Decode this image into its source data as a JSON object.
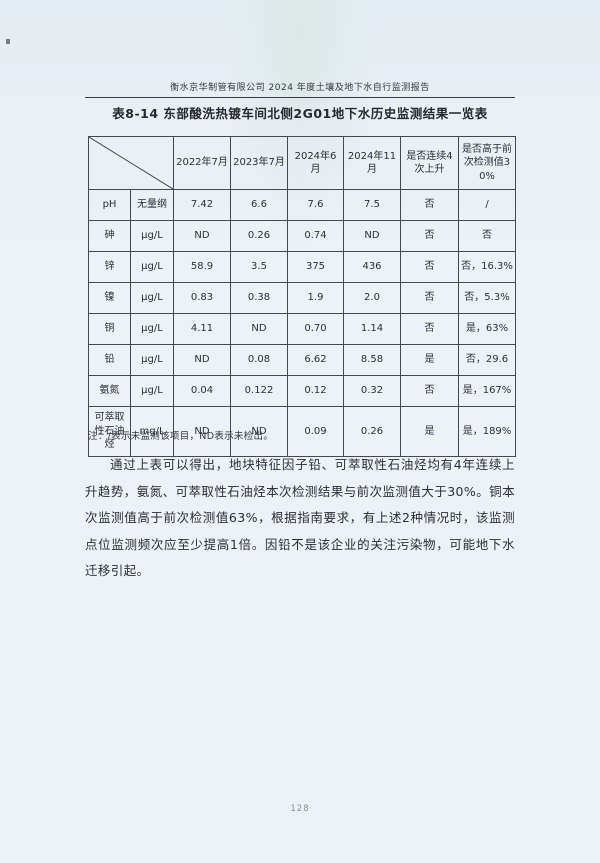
{
  "page": {
    "header_title": "衡水京华制管有限公司 2024 年度土壤及地下水自行监测报告",
    "table_title": "表8-14  东部酸洗热镀车间北侧2G01地下水历史监测结果一览表",
    "note": "注：/表示未监测该项目，ND表示未检出。",
    "paragraph": "通过上表可以得出，地块特征因子铅、可萃取性石油烃均有4年连续上升趋势，氨氮、可萃取性石油烃本次检测结果与前次监测值大于30%。铜本次监测值高于前次检测值63%，根据指南要求，有上述2种情况时，该监测点位监测频次应至少提高1倍。因铅不是该企业的关注污染物，可能地下水迁移引起。",
    "page_number": "128"
  },
  "table": {
    "columns": [
      "2022年7月",
      "2023年7月",
      "2024年6月",
      "2024年11月",
      "是否连续4次上升",
      "是否高于前次检测值30%"
    ],
    "rows": [
      {
        "name": "pH",
        "unit": "无量纲",
        "values": [
          "7.42",
          "6.6",
          "7.6",
          "7.5"
        ],
        "rising": "否",
        "rising_bold": false,
        "exceed": "/",
        "exceed_bold": false
      },
      {
        "name": "砷",
        "unit": "μg/L",
        "values": [
          "ND",
          "0.26",
          "0.74",
          "ND"
        ],
        "rising": "否",
        "rising_bold": false,
        "exceed": "否",
        "exceed_bold": false
      },
      {
        "name": "锌",
        "unit": "μg/L",
        "values": [
          "58.9",
          "3.5",
          "375",
          "436"
        ],
        "rising": "否",
        "rising_bold": false,
        "exceed": "否，16.3%",
        "exceed_bold": false
      },
      {
        "name": "镍",
        "unit": "μg/L",
        "values": [
          "0.83",
          "0.38",
          "1.9",
          "2.0"
        ],
        "rising": "否",
        "rising_bold": false,
        "exceed": "否，5.3%",
        "exceed_bold": false
      },
      {
        "name": "铜",
        "unit": "μg/L",
        "values": [
          "4.11",
          "ND",
          "0.70",
          "1.14"
        ],
        "rising": "否",
        "rising_bold": false,
        "exceed": "是，63%",
        "exceed_bold": true
      },
      {
        "name": "铅",
        "unit": "μg/L",
        "values": [
          "ND",
          "0.08",
          "6.62",
          "8.58"
        ],
        "rising": "是",
        "rising_bold": true,
        "exceed": "否，29.6",
        "exceed_bold": false
      },
      {
        "name": "氨氮",
        "unit": "μg/L",
        "values": [
          "0.04",
          "0.122",
          "0.12",
          "0.32"
        ],
        "rising": "否",
        "rising_bold": false,
        "exceed": "是，167%",
        "exceed_bold": true
      },
      {
        "name": "可萃取性石油烃",
        "unit": "mg/L",
        "values": [
          "ND",
          "ND",
          "0.09",
          "0.26"
        ],
        "rising": "是",
        "rising_bold": true,
        "exceed": "是，189%",
        "exceed_bold": true
      }
    ]
  }
}
